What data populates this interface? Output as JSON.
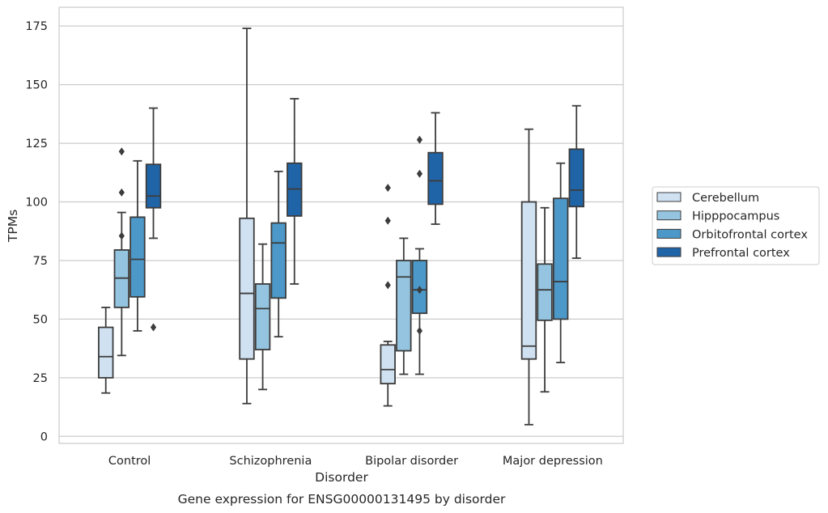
{
  "chart_data": {
    "type": "box",
    "title": "",
    "caption": "Gene expression for ENSG00000131495 by disorder",
    "xlabel": "Disorder",
    "ylabel": "TPMs",
    "ylim": [
      -3,
      183
    ],
    "yticks": [
      0,
      25,
      50,
      75,
      100,
      125,
      150,
      175
    ],
    "grid": "horizontal",
    "legend_position": "right",
    "categories": [
      "Control",
      "Schizophrenia",
      "Bipolar disorder",
      "Major depression"
    ],
    "series": [
      {
        "name": "Cerebellum",
        "color": "#d0e1f1",
        "boxes": [
          {
            "whisker_low": 18.5,
            "q1": 25,
            "median": 34,
            "q3": 46.5,
            "whisker_high": 55,
            "outliers": []
          },
          {
            "whisker_low": 14,
            "q1": 33,
            "median": 61,
            "q3": 93,
            "whisker_high": 174,
            "outliers": []
          },
          {
            "whisker_low": 13,
            "q1": 22.5,
            "median": 28.5,
            "q3": 39,
            "whisker_high": 40.5,
            "outliers": [
              64.5,
              92,
              106
            ]
          },
          {
            "whisker_low": 5,
            "q1": 33,
            "median": 38.5,
            "q3": 100,
            "whisker_high": 131,
            "outliers": []
          }
        ]
      },
      {
        "name": "Hipppocampus",
        "color": "#94c4df",
        "boxes": [
          {
            "whisker_low": 34.5,
            "q1": 55,
            "median": 67.5,
            "q3": 79.5,
            "whisker_high": 95.5,
            "outliers": [
              85.5,
              104,
              121.5
            ]
          },
          {
            "whisker_low": 20,
            "q1": 37,
            "median": 54.5,
            "q3": 65,
            "whisker_high": 82,
            "outliers": []
          },
          {
            "whisker_low": 26.5,
            "q1": 36.5,
            "median": 68,
            "q3": 75,
            "whisker_high": 84.5,
            "outliers": []
          },
          {
            "whisker_low": 19,
            "q1": 49.5,
            "median": 62.5,
            "q3": 73.5,
            "whisker_high": 97.5,
            "outliers": []
          }
        ]
      },
      {
        "name": "Orbitofrontal cortex",
        "color": "#4b98c9",
        "boxes": [
          {
            "whisker_low": 45,
            "q1": 59.5,
            "median": 75.5,
            "q3": 93.5,
            "whisker_high": 117.5,
            "outliers": []
          },
          {
            "whisker_low": 42.5,
            "q1": 59,
            "median": 82.5,
            "q3": 91,
            "whisker_high": 113,
            "outliers": []
          },
          {
            "whisker_low": 26.5,
            "q1": 52.5,
            "median": 62.5,
            "q3": 75,
            "whisker_high": 80,
            "outliers": [
              45,
              62.5,
              112,
              126.5
            ]
          },
          {
            "whisker_low": 31.5,
            "q1": 50,
            "median": 66,
            "q3": 101.5,
            "whisker_high": 116.5,
            "outliers": []
          }
        ]
      },
      {
        "name": "Prefrontal cortex",
        "color": "#2064a8",
        "boxes": [
          {
            "whisker_low": 84.5,
            "q1": 97.5,
            "median": 102.5,
            "q3": 116,
            "whisker_high": 140,
            "outliers": [
              46.5
            ]
          },
          {
            "whisker_low": 65,
            "q1": 94,
            "median": 105.5,
            "q3": 116.5,
            "whisker_high": 144,
            "outliers": []
          },
          {
            "whisker_low": 90.5,
            "q1": 99,
            "median": 109,
            "q3": 121,
            "whisker_high": 138,
            "outliers": []
          },
          {
            "whisker_low": 76,
            "q1": 98,
            "median": 105,
            "q3": 122.5,
            "whisker_high": 141,
            "outliers": []
          }
        ]
      }
    ]
  }
}
